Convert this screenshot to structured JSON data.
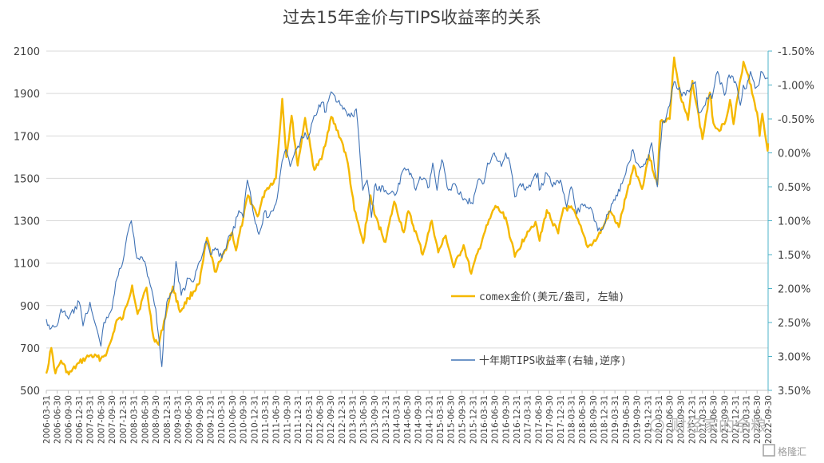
{
  "chart_data": {
    "type": "line",
    "title": "过去15年金价与TIPS收益率的关系",
    "left_axis": {
      "range": [
        500,
        2100
      ],
      "ticks": [
        500,
        700,
        900,
        1100,
        1300,
        1500,
        1700,
        1900,
        2100
      ],
      "tick_labels": [
        "500",
        "700",
        "900",
        "1100",
        "1300",
        "1500",
        "1700",
        "1900",
        "2100"
      ]
    },
    "right_axis": {
      "range": [
        3.5,
        -1.5
      ],
      "reversed": true,
      "ticks": [
        -1.5,
        -1.0,
        -0.5,
        0.0,
        0.5,
        1.0,
        1.5,
        2.0,
        2.5,
        3.0,
        3.5
      ],
      "tick_labels": [
        "-1.50%",
        "-1.00%",
        "-0.50%",
        "0.00%",
        "0.50%",
        "1.00%",
        "1.50%",
        "2.00%",
        "2.50%",
        "3.00%",
        "3.50%"
      ],
      "color": "#4db3c8"
    },
    "x_tick_labels": [
      "2006-03-31",
      "2006-06-30",
      "2006-09-30",
      "2006-12-31",
      "2007-03-31",
      "2007-06-30",
      "2007-09-30",
      "2007-12-31",
      "2008-03-31",
      "2008-06-30",
      "2008-09-30",
      "2008-12-31",
      "2009-03-31",
      "2009-06-30",
      "2009-09-30",
      "2009-12-31",
      "2010-03-31",
      "2010-06-30",
      "2010-09-30",
      "2010-12-31",
      "2011-03-31",
      "2011-06-30",
      "2011-09-30",
      "2011-12-31",
      "2012-03-31",
      "2012-06-30",
      "2012-09-30",
      "2012-12-31",
      "2013-03-31",
      "2013-06-30",
      "2013-09-30",
      "2013-12-31",
      "2014-03-31",
      "2014-06-30",
      "2014-09-30",
      "2014-12-31",
      "2015-03-31",
      "2015-06-30",
      "2015-09-30",
      "2015-12-31",
      "2016-03-31",
      "2016-06-30",
      "2016-09-30",
      "2016-12-31",
      "2017-03-31",
      "2017-06-30",
      "2017-09-30",
      "2017-12-31",
      "2018-03-31",
      "2018-06-30",
      "2018-09-30",
      "2018-12-31",
      "2019-03-31",
      "2019-06-30",
      "2019-09-30",
      "2019-12-31",
      "2020-03-31",
      "2020-06-30",
      "2020-09-30",
      "2020-12-31",
      "2021-03-31",
      "2021-06-30",
      "2021-09-30",
      "2021-12-31",
      "2022-03-31",
      "2022-06-30",
      "2022-09-30"
    ],
    "grid": true,
    "legend_placement": "center-right",
    "series": [
      {
        "name": "comex金价(美元/盎司, 左轴)",
        "axis": "left",
        "color": "#f5b800",
        "points": [
          [
            "2006-03-31",
            580
          ],
          [
            "2006-05-12",
            700
          ],
          [
            "2006-06-15",
            580
          ],
          [
            "2006-08-01",
            640
          ],
          [
            "2006-10-05",
            575
          ],
          [
            "2006-12-31",
            630
          ],
          [
            "2007-03-31",
            665
          ],
          [
            "2007-06-30",
            650
          ],
          [
            "2007-08-20",
            680
          ],
          [
            "2007-09-30",
            745
          ],
          [
            "2007-11-08",
            830
          ],
          [
            "2007-12-31",
            840
          ],
          [
            "2008-03-17",
            995
          ],
          [
            "2008-05-01",
            860
          ],
          [
            "2008-07-15",
            985
          ],
          [
            "2008-09-11",
            750
          ],
          [
            "2008-10-24",
            715
          ],
          [
            "2008-12-31",
            880
          ],
          [
            "2009-02-20",
            990
          ],
          [
            "2009-04-20",
            870
          ],
          [
            "2009-06-30",
            935
          ],
          [
            "2009-09-30",
            1005
          ],
          [
            "2009-12-02",
            1220
          ],
          [
            "2010-02-05",
            1060
          ],
          [
            "2010-03-31",
            1115
          ],
          [
            "2010-06-30",
            1245
          ],
          [
            "2010-08-01",
            1160
          ],
          [
            "2010-09-30",
            1310
          ],
          [
            "2010-11-09",
            1420
          ],
          [
            "2011-01-28",
            1320
          ],
          [
            "2011-03-31",
            1440
          ],
          [
            "2011-06-30",
            1500
          ],
          [
            "2011-08-22",
            1875
          ],
          [
            "2011-09-26",
            1600
          ],
          [
            "2011-11-08",
            1795
          ],
          [
            "2011-12-29",
            1560
          ],
          [
            "2012-02-29",
            1785
          ],
          [
            "2012-05-16",
            1540
          ],
          [
            "2012-07-15",
            1590
          ],
          [
            "2012-10-04",
            1790
          ],
          [
            "2012-12-31",
            1675
          ],
          [
            "2013-02-20",
            1570
          ],
          [
            "2013-04-15",
            1350
          ],
          [
            "2013-06-28",
            1195
          ],
          [
            "2013-08-28",
            1420
          ],
          [
            "2013-09-30",
            1330
          ],
          [
            "2013-12-31",
            1200
          ],
          [
            "2014-03-14",
            1390
          ],
          [
            "2014-06-02",
            1245
          ],
          [
            "2014-07-10",
            1345
          ],
          [
            "2014-09-30",
            1210
          ],
          [
            "2014-11-07",
            1140
          ],
          [
            "2015-01-22",
            1300
          ],
          [
            "2015-03-17",
            1150
          ],
          [
            "2015-05-18",
            1230
          ],
          [
            "2015-07-24",
            1080
          ],
          [
            "2015-10-14",
            1185
          ],
          [
            "2015-12-17",
            1050
          ],
          [
            "2016-03-31",
            1235
          ],
          [
            "2016-07-06",
            1370
          ],
          [
            "2016-09-30",
            1315
          ],
          [
            "2016-12-15",
            1130
          ],
          [
            "2017-03-31",
            1250
          ],
          [
            "2017-06-06",
            1295
          ],
          [
            "2017-07-10",
            1205
          ],
          [
            "2017-09-08",
            1350
          ],
          [
            "2017-12-12",
            1240
          ],
          [
            "2018-01-25",
            1360
          ],
          [
            "2018-04-11",
            1355
          ],
          [
            "2018-06-30",
            1250
          ],
          [
            "2018-08-16",
            1175
          ],
          [
            "2018-10-31",
            1215
          ],
          [
            "2018-12-31",
            1280
          ],
          [
            "2019-02-20",
            1345
          ],
          [
            "2019-05-02",
            1270
          ],
          [
            "2019-06-30",
            1410
          ],
          [
            "2019-09-04",
            1560
          ],
          [
            "2019-11-12",
            1450
          ],
          [
            "2020-01-08",
            1610
          ],
          [
            "2020-03-19",
            1470
          ],
          [
            "2020-04-14",
            1770
          ],
          [
            "2020-06-30",
            1780
          ],
          [
            "2020-08-06",
            2070
          ],
          [
            "2020-09-30",
            1880
          ],
          [
            "2020-11-30",
            1775
          ],
          [
            "2021-01-06",
            1960
          ],
          [
            "2021-03-31",
            1685
          ],
          [
            "2021-06-01",
            1905
          ],
          [
            "2021-06-30",
            1760
          ],
          [
            "2021-08-09",
            1730
          ],
          [
            "2021-09-30",
            1755
          ],
          [
            "2021-11-16",
            1870
          ],
          [
            "2021-12-15",
            1755
          ],
          [
            "2022-03-08",
            2050
          ],
          [
            "2022-04-18",
            1985
          ],
          [
            "2022-06-30",
            1810
          ],
          [
            "2022-07-21",
            1700
          ],
          [
            "2022-08-12",
            1805
          ],
          [
            "2022-09-26",
            1630
          ],
          [
            "2022-09-30",
            1665
          ]
        ]
      },
      {
        "name": "十年期TIPS收益率(右轴,逆序)",
        "axis": "right",
        "color": "#3f72b5",
        "points": [
          [
            "2006-03-31",
            2.45
          ],
          [
            "2006-05-01",
            2.6
          ],
          [
            "2006-06-28",
            2.55
          ],
          [
            "2006-08-01",
            2.3
          ],
          [
            "2006-10-02",
            2.45
          ],
          [
            "2006-12-31",
            2.2
          ],
          [
            "2007-02-01",
            2.55
          ],
          [
            "2007-03-31",
            2.2
          ],
          [
            "2007-05-02",
            2.45
          ],
          [
            "2007-06-30",
            2.85
          ],
          [
            "2007-07-25",
            2.5
          ],
          [
            "2007-09-30",
            2.3
          ],
          [
            "2007-11-01",
            1.9
          ],
          [
            "2007-12-31",
            1.6
          ],
          [
            "2008-01-22",
            1.35
          ],
          [
            "2008-03-10",
            1.0
          ],
          [
            "2008-04-25",
            1.55
          ],
          [
            "2008-06-30",
            1.6
          ],
          [
            "2008-08-15",
            1.95
          ],
          [
            "2008-09-30",
            2.3
          ],
          [
            "2008-10-31",
            2.8
          ],
          [
            "2008-11-20",
            3.15
          ],
          [
            "2008-12-10",
            2.55
          ],
          [
            "2008-12-31",
            2.2
          ],
          [
            "2009-02-28",
            2.0
          ],
          [
            "2009-03-18",
            1.6
          ],
          [
            "2009-05-01",
            2.1
          ],
          [
            "2009-06-30",
            1.85
          ],
          [
            "2009-08-10",
            1.9
          ],
          [
            "2009-09-30",
            1.6
          ],
          [
            "2009-11-25",
            1.3
          ],
          [
            "2009-12-31",
            1.5
          ],
          [
            "2010-02-08",
            1.4
          ],
          [
            "2010-04-05",
            1.55
          ],
          [
            "2010-05-21",
            1.3
          ],
          [
            "2010-06-30",
            1.2
          ],
          [
            "2010-08-25",
            0.85
          ],
          [
            "2010-09-30",
            0.95
          ],
          [
            "2010-11-04",
            0.4
          ],
          [
            "2010-12-31",
            0.95
          ],
          [
            "2011-02-08",
            1.2
          ],
          [
            "2011-03-31",
            0.85
          ],
          [
            "2011-04-15",
            0.95
          ],
          [
            "2011-06-30",
            0.75
          ],
          [
            "2011-08-10",
            0.25
          ],
          [
            "2011-09-22",
            -0.05
          ],
          [
            "2011-10-27",
            0.2
          ],
          [
            "2011-12-31",
            -0.1
          ],
          [
            "2012-02-28",
            -0.3
          ],
          [
            "2012-03-20",
            -0.2
          ],
          [
            "2012-05-14",
            -0.55
          ],
          [
            "2012-07-24",
            -0.75
          ],
          [
            "2012-08-20",
            -0.6
          ],
          [
            "2012-10-03",
            -0.9
          ],
          [
            "2012-11-15",
            -0.75
          ],
          [
            "2012-12-31",
            -0.7
          ],
          [
            "2013-02-08",
            -0.6
          ],
          [
            "2013-03-31",
            -0.55
          ],
          [
            "2013-05-01",
            -0.65
          ],
          [
            "2013-06-25",
            0.55
          ],
          [
            "2013-07-31",
            0.4
          ],
          [
            "2013-09-05",
            0.95
          ],
          [
            "2013-09-30",
            0.5
          ],
          [
            "2013-12-31",
            0.55
          ],
          [
            "2014-03-31",
            0.6
          ],
          [
            "2014-05-29",
            0.25
          ],
          [
            "2014-07-31",
            0.3
          ],
          [
            "2014-09-10",
            0.55
          ],
          [
            "2014-10-15",
            0.35
          ],
          [
            "2014-12-31",
            0.5
          ],
          [
            "2015-01-30",
            0.15
          ],
          [
            "2015-03-06",
            0.55
          ],
          [
            "2015-04-16",
            0.1
          ],
          [
            "2015-06-10",
            0.55
          ],
          [
            "2015-07-25",
            0.45
          ],
          [
            "2015-09-30",
            0.65
          ],
          [
            "2015-12-31",
            0.75
          ],
          [
            "2016-02-11",
            0.4
          ],
          [
            "2016-03-31",
            0.45
          ],
          [
            "2016-05-02",
            0.15
          ],
          [
            "2016-06-27",
            0.0
          ],
          [
            "2016-07-08",
            0.05
          ],
          [
            "2016-08-25",
            0.2
          ],
          [
            "2016-09-30",
            0.0
          ],
          [
            "2016-11-04",
            0.15
          ],
          [
            "2016-12-15",
            0.65
          ],
          [
            "2017-01-31",
            0.45
          ],
          [
            "2017-03-14",
            0.55
          ],
          [
            "2017-06-26",
            0.3
          ],
          [
            "2017-07-07",
            0.55
          ],
          [
            "2017-09-08",
            0.3
          ],
          [
            "2017-10-26",
            0.5
          ],
          [
            "2017-12-31",
            0.4
          ],
          [
            "2018-02-21",
            0.8
          ],
          [
            "2018-03-31",
            0.5
          ],
          [
            "2018-05-17",
            0.9
          ],
          [
            "2018-06-30",
            0.75
          ],
          [
            "2018-08-15",
            0.8
          ],
          [
            "2018-09-30",
            0.9
          ],
          [
            "2018-11-08",
            1.15
          ],
          [
            "2018-12-31",
            1.05
          ],
          [
            "2019-01-31",
            0.9
          ],
          [
            "2019-03-31",
            0.7
          ],
          [
            "2019-05-31",
            0.45
          ],
          [
            "2019-06-30",
            0.3
          ],
          [
            "2019-08-28",
            -0.05
          ],
          [
            "2019-09-30",
            0.15
          ],
          [
            "2019-11-08",
            0.2
          ],
          [
            "2019-12-31",
            0.1
          ],
          [
            "2020-01-31",
            -0.15
          ],
          [
            "2020-03-19",
            0.5
          ],
          [
            "2020-04-30",
            -0.45
          ],
          [
            "2020-05-28",
            -0.5
          ],
          [
            "2020-06-30",
            -0.7
          ],
          [
            "2020-08-06",
            -1.05
          ],
          [
            "2020-09-30",
            -0.9
          ],
          [
            "2020-11-10",
            -0.85
          ],
          [
            "2020-12-31",
            -1.0
          ],
          [
            "2021-01-29",
            -1.05
          ],
          [
            "2021-02-25",
            -0.6
          ],
          [
            "2021-03-31",
            -0.65
          ],
          [
            "2021-05-28",
            -0.85
          ],
          [
            "2021-06-18",
            -0.8
          ],
          [
            "2021-08-04",
            -1.2
          ],
          [
            "2021-09-30",
            -0.85
          ],
          [
            "2021-11-08",
            -1.15
          ],
          [
            "2021-12-31",
            -1.05
          ],
          [
            "2022-02-10",
            -0.7
          ],
          [
            "2022-03-07",
            -1.0
          ],
          [
            "2022-04-01",
            -0.95
          ],
          [
            "2022-05-06",
            -1.2
          ],
          [
            "2022-06-14",
            -0.95
          ],
          [
            "2022-07-15",
            -1.0
          ],
          [
            "2022-08-01",
            -1.2
          ],
          [
            "2022-08-25",
            -1.15
          ],
          [
            "2022-09-30",
            -1.1
          ]
        ]
      }
    ]
  },
  "watermark": {
    "text": "财经家的余粮",
    "brand": "格隆汇"
  }
}
